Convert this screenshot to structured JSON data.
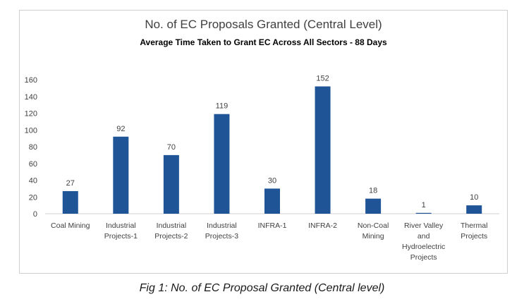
{
  "chart_data": {
    "type": "bar",
    "title": "No. of EC Proposals Granted (Central Level)",
    "subtitle": "Average Time Taken to Grant EC Across All Sectors - 88 Days",
    "categories": [
      [
        "Coal Mining"
      ],
      [
        "Industrial",
        "Projects-1"
      ],
      [
        "Industrial",
        "Projects-2"
      ],
      [
        "Industrial",
        "Projects-3"
      ],
      [
        "INFRA-1"
      ],
      [
        "INFRA-2"
      ],
      [
        "Non-Coal",
        "Mining"
      ],
      [
        "River Valley",
        "and",
        "Hydroelectric",
        "Projects"
      ],
      [
        "Thermal",
        "Projects"
      ]
    ],
    "values": [
      27,
      92,
      70,
      119,
      30,
      152,
      18,
      1,
      10
    ],
    "yticks": [
      0,
      20,
      40,
      60,
      80,
      100,
      120,
      140,
      160
    ],
    "ylim": [
      0,
      160
    ],
    "xlabel": "",
    "ylabel": "",
    "grid": false,
    "bar_color": "#1f5597",
    "data_labels": true
  },
  "caption": "Fig 1: No. of EC Proposal Granted (Central level)"
}
